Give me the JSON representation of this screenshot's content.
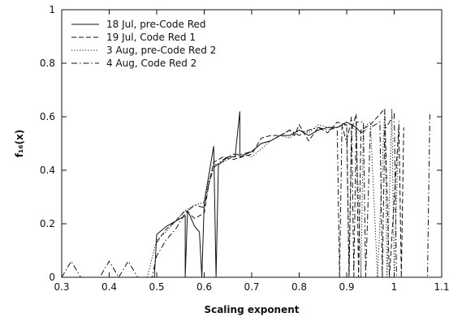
{
  "chart_data": {
    "type": "line",
    "title": "",
    "xlabel": "Scaling exponent",
    "ylabel": "f₁₆(x)",
    "xlim": [
      0.3,
      1.1
    ],
    "ylim": [
      0,
      1
    ],
    "xticks": [
      "0.3",
      "0.4",
      "0.5",
      "0.6",
      "0.7",
      "0.8",
      "0.9",
      "1",
      "1.1"
    ],
    "yticks": [
      "0",
      "0.2",
      "0.4",
      "0.6",
      "0.8",
      "1"
    ],
    "grid": false,
    "legend_position": "top-left",
    "series": [
      {
        "name": "18 Jul, pre-Code Red",
        "dash": "solid",
        "points": [
          [
            0.495,
            0
          ],
          [
            0.5,
            0.16
          ],
          [
            0.52,
            0.19
          ],
          [
            0.54,
            0.21
          ],
          [
            0.56,
            0.23
          ],
          [
            0.56,
            0
          ],
          [
            0.565,
            0.25
          ],
          [
            0.58,
            0.19
          ],
          [
            0.59,
            0.17
          ],
          [
            0.595,
            0
          ],
          [
            0.6,
            0.28
          ],
          [
            0.62,
            0.49
          ],
          [
            0.625,
            0
          ],
          [
            0.63,
            0.42
          ],
          [
            0.65,
            0.45
          ],
          [
            0.665,
            0.45
          ],
          [
            0.675,
            0.62
          ],
          [
            0.675,
            0.45
          ],
          [
            0.7,
            0.47
          ],
          [
            0.72,
            0.5
          ],
          [
            0.74,
            0.51
          ],
          [
            0.76,
            0.53
          ],
          [
            0.78,
            0.53
          ],
          [
            0.8,
            0.55
          ],
          [
            0.82,
            0.53
          ],
          [
            0.84,
            0.55
          ],
          [
            0.86,
            0.56
          ],
          [
            0.88,
            0.56
          ],
          [
            0.9,
            0.58
          ],
          [
            0.92,
            0.56
          ],
          [
            0.93,
            0.54
          ],
          [
            0.94,
            0.55
          ]
        ]
      },
      {
        "name": "19 Jul, Code Red 1",
        "dash": "dashed",
        "points": [
          [
            0.5,
            0.13
          ],
          [
            0.52,
            0.18
          ],
          [
            0.54,
            0.21
          ],
          [
            0.56,
            0.25
          ],
          [
            0.58,
            0.22
          ],
          [
            0.6,
            0.24
          ],
          [
            0.61,
            0.35
          ],
          [
            0.62,
            0.43
          ],
          [
            0.64,
            0.45
          ],
          [
            0.66,
            0.44
          ],
          [
            0.68,
            0.45
          ],
          [
            0.7,
            0.46
          ],
          [
            0.72,
            0.52
          ],
          [
            0.74,
            0.53
          ],
          [
            0.76,
            0.53
          ],
          [
            0.78,
            0.55
          ],
          [
            0.79,
            0.53
          ],
          [
            0.8,
            0.57
          ],
          [
            0.82,
            0.51
          ],
          [
            0.84,
            0.56
          ],
          [
            0.86,
            0.54
          ],
          [
            0.88,
            0.58
          ],
          [
            0.9,
            0.57
          ],
          [
            0.905,
            0
          ],
          [
            0.91,
            0.55
          ],
          [
            0.92,
            0.61
          ],
          [
            0.925,
            0
          ],
          [
            0.93,
            0.55
          ],
          [
            0.95,
            0.57
          ],
          [
            0.98,
            0.63
          ],
          [
            0.99,
            0
          ],
          [
            1.01,
            0.57
          ],
          [
            1.015,
            0
          ],
          [
            1.02,
            0.56
          ]
        ]
      },
      {
        "name": "3 Aug, pre-Code Red 2",
        "dash": "dotted",
        "points": [
          [
            0.48,
            0
          ],
          [
            0.5,
            0.14
          ],
          [
            0.52,
            0.17
          ],
          [
            0.54,
            0.21
          ],
          [
            0.56,
            0.25
          ],
          [
            0.58,
            0.27
          ],
          [
            0.6,
            0.28
          ],
          [
            0.61,
            0.36
          ],
          [
            0.62,
            0.42
          ],
          [
            0.64,
            0.43
          ],
          [
            0.66,
            0.45
          ],
          [
            0.68,
            0.46
          ],
          [
            0.7,
            0.45
          ],
          [
            0.72,
            0.48
          ],
          [
            0.74,
            0.51
          ],
          [
            0.76,
            0.53
          ],
          [
            0.78,
            0.52
          ],
          [
            0.8,
            0.55
          ],
          [
            0.82,
            0.54
          ],
          [
            0.84,
            0.57
          ],
          [
            0.86,
            0.56
          ],
          [
            0.88,
            0.56
          ],
          [
            0.9,
            0.57
          ],
          [
            0.905,
            0
          ],
          [
            0.91,
            0.56
          ],
          [
            0.92,
            0.55
          ],
          [
            0.93,
            0
          ],
          [
            0.935,
            0.56
          ],
          [
            0.95,
            0.58
          ],
          [
            0.965,
            0
          ],
          [
            0.98,
            0.62
          ],
          [
            0.985,
            0
          ],
          [
            0.995,
            0.63
          ],
          [
            1.0,
            0
          ],
          [
            1.01,
            0.59
          ]
        ]
      },
      {
        "name": "4 Aug, Code Red 2",
        "dash": "dashdot",
        "points": [
          [
            0.3,
            0
          ],
          [
            0.32,
            0.06
          ],
          [
            0.34,
            0
          ],
          [
            0.36,
            0
          ],
          [
            0.38,
            0
          ],
          [
            0.4,
            0.06
          ],
          [
            0.42,
            0
          ],
          [
            0.44,
            0.06
          ],
          [
            0.46,
            0
          ],
          [
            0.49,
            0
          ],
          [
            0.5,
            0.08
          ],
          [
            0.52,
            0.14
          ],
          [
            0.54,
            0.18
          ],
          [
            0.56,
            0.24
          ],
          [
            0.58,
            0.27
          ],
          [
            0.6,
            0.26
          ],
          [
            0.61,
            0.35
          ],
          [
            0.62,
            0.41
          ],
          [
            0.64,
            0.44
          ],
          [
            0.66,
            0.46
          ],
          [
            0.68,
            0.46
          ],
          [
            0.7,
            0.47
          ],
          [
            0.72,
            0.5
          ],
          [
            0.74,
            0.51
          ],
          [
            0.76,
            0.53
          ],
          [
            0.78,
            0.55
          ],
          [
            0.8,
            0.53
          ],
          [
            0.82,
            0.55
          ],
          [
            0.84,
            0.56
          ],
          [
            0.86,
            0.55
          ],
          [
            0.88,
            0.56
          ],
          [
            0.885,
            0
          ],
          [
            0.89,
            0.57
          ],
          [
            0.9,
            0.5
          ],
          [
            0.91,
            0.6
          ],
          [
            0.915,
            0
          ],
          [
            0.92,
            0.58
          ],
          [
            0.935,
            0.58
          ],
          [
            0.94,
            0
          ],
          [
            0.95,
            0.56
          ],
          [
            0.97,
            0.58
          ],
          [
            0.975,
            0
          ],
          [
            0.98,
            0.55
          ],
          [
            1.0,
            0.61
          ],
          [
            1.005,
            0
          ],
          [
            1.07,
            0
          ],
          [
            1.075,
            0.61
          ]
        ]
      }
    ]
  }
}
